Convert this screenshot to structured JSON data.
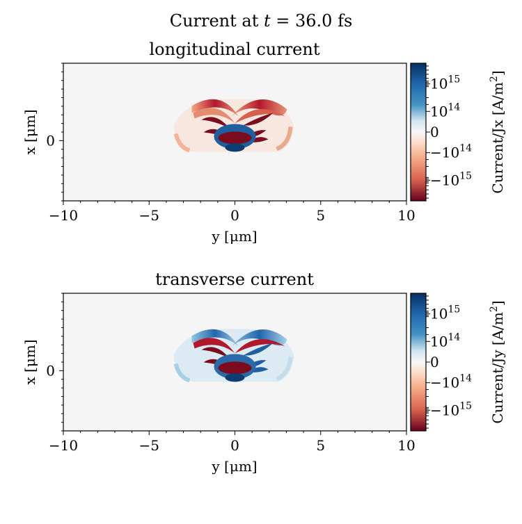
{
  "chart_data": {
    "type": "heatmap",
    "suptitle": "Current at t = 36.0 fs",
    "suptitle_parts": {
      "prefix": "Current at ",
      "var": "t",
      "suffix": " = 36.0 fs"
    },
    "panels": [
      {
        "title": "longitudinal current",
        "xlabel": "y [μm]",
        "ylabel": "x [μm]",
        "xlim": [
          -10,
          10
        ],
        "ylim": [
          -3.5,
          4.5
        ],
        "xticks": [
          -10,
          -5,
          0,
          5,
          10
        ],
        "xtick_labels": [
          "−10",
          "−5",
          "0",
          "5",
          "10"
        ],
        "yticks": [
          0
        ],
        "ytick_labels": [
          "0"
        ],
        "colorbar_label": "Current/Jx [A/m²]",
        "colorbar_label_parts": {
          "main": "Current/Jx [A/m",
          "sup": "2",
          "end": "]"
        },
        "colorbar_scale": "symlog",
        "colorbar_ticks": [
          "10^15",
          "10^14",
          "0",
          "−10^14",
          "−10^15"
        ],
        "colormap": "RdBu"
      },
      {
        "title": "transverse current",
        "xlabel": "y [μm]",
        "ylabel": "x [μm]",
        "xlim": [
          -10,
          10
        ],
        "ylim": [
          -3.5,
          4.5
        ],
        "xticks": [
          -10,
          -5,
          0,
          5,
          10
        ],
        "xtick_labels": [
          "−10",
          "−5",
          "0",
          "5",
          "10"
        ],
        "yticks": [
          0
        ],
        "ytick_labels": [
          "0"
        ],
        "colorbar_label": "Current/Jy [A/m²]",
        "colorbar_label_parts": {
          "main": "Current/Jy [A/m",
          "sup": "2",
          "end": "]"
        },
        "colorbar_scale": "symlog",
        "colorbar_ticks": [
          "10^15",
          "10^14",
          "0",
          "−10^14",
          "−10^15"
        ],
        "colormap": "RdBu"
      }
    ],
    "colors": {
      "background": "#f5f5f5",
      "dark_red": "#7a0c1e",
      "red": "#c2473f",
      "light_red": "#f0b196",
      "white": "#f7f7f7",
      "light_blue": "#b8d7e9",
      "blue": "#3a84bb",
      "dark_blue": "#0b3d72"
    }
  }
}
